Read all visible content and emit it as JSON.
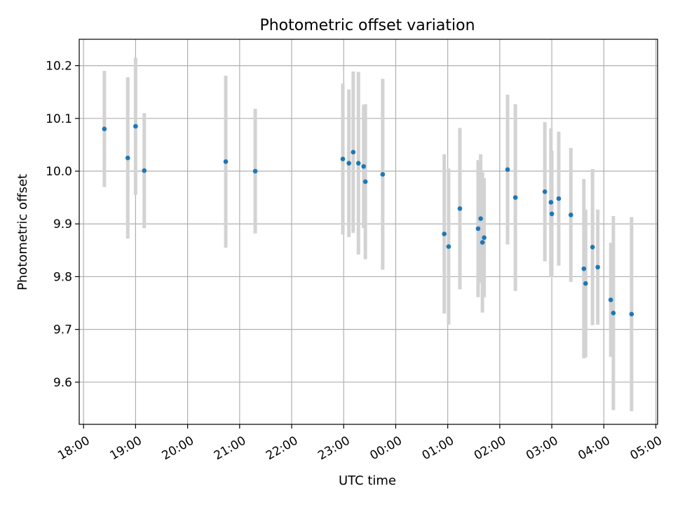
{
  "chart_data": {
    "type": "scatter",
    "title": "Photometric offset variation",
    "xlabel": "UTC time",
    "ylabel": "Photometric offset",
    "x_axis_kind": "time (hours)",
    "xlim": [
      "17:55",
      "05:02"
    ],
    "ylim": [
      9.52,
      10.25
    ],
    "x_ticks": [
      "18:00",
      "19:00",
      "20:00",
      "21:00",
      "22:00",
      "23:00",
      "00:00",
      "01:00",
      "02:00",
      "03:00",
      "04:00",
      "05:00"
    ],
    "y_ticks": [
      9.6,
      9.7,
      9.8,
      9.9,
      10.0,
      10.1,
      10.2
    ],
    "grid": true,
    "legend": "none",
    "marker_color": "#1f77b4",
    "errorbar_color": "#d3d3d3",
    "series": [
      {
        "points": [
          {
            "x": "18:24",
            "y": 10.08,
            "err": 0.11
          },
          {
            "x": "18:51",
            "y": 10.025,
            "err": 0.153
          },
          {
            "x": "19:00",
            "y": 10.085,
            "err": 0.13
          },
          {
            "x": "19:10",
            "y": 10.001,
            "err": 0.109
          },
          {
            "x": "20:44",
            "y": 10.018,
            "err": 0.163
          },
          {
            "x": "21:18",
            "y": 10.0,
            "err": 0.118
          },
          {
            "x": "22:59",
            "y": 10.023,
            "err": 0.143
          },
          {
            "x": "23:06",
            "y": 10.015,
            "err": 0.14
          },
          {
            "x": "23:11",
            "y": 10.036,
            "err": 0.153
          },
          {
            "x": "23:17",
            "y": 10.015,
            "err": 0.173
          },
          {
            "x": "23:23",
            "y": 10.009,
            "err": 0.117
          },
          {
            "x": "23:25",
            "y": 9.98,
            "err": 0.147
          },
          {
            "x": "23:45",
            "y": 9.994,
            "err": 0.181
          },
          {
            "x": "00:56",
            "y": 9.881,
            "err": 0.151
          },
          {
            "x": "01:01",
            "y": 9.857,
            "err": 0.148
          },
          {
            "x": "01:14",
            "y": 9.929,
            "err": 0.153
          },
          {
            "x": "01:35",
            "y": 9.891,
            "err": 0.13
          },
          {
            "x": "01:38",
            "y": 9.91,
            "err": 0.122
          },
          {
            "x": "01:40",
            "y": 9.865,
            "err": 0.133
          },
          {
            "x": "01:42",
            "y": 9.874,
            "err": 0.113
          },
          {
            "x": "02:09",
            "y": 10.003,
            "err": 0.142
          },
          {
            "x": "02:18",
            "y": 9.95,
            "err": 0.177
          },
          {
            "x": "02:52",
            "y": 9.961,
            "err": 0.132
          },
          {
            "x": "02:59",
            "y": 9.941,
            "err": 0.14
          },
          {
            "x": "03:00",
            "y": 9.919,
            "err": 0.12
          },
          {
            "x": "03:08",
            "y": 9.948,
            "err": 0.127
          },
          {
            "x": "03:22",
            "y": 9.917,
            "err": 0.127
          },
          {
            "x": "03:37",
            "y": 9.815,
            "err": 0.17
          },
          {
            "x": "03:39",
            "y": 9.787,
            "err": 0.14
          },
          {
            "x": "03:47",
            "y": 9.856,
            "err": 0.148
          },
          {
            "x": "03:53",
            "y": 9.818,
            "err": 0.109
          },
          {
            "x": "04:08",
            "y": 9.756,
            "err": 0.108
          },
          {
            "x": "04:11",
            "y": 9.731,
            "err": 0.184
          },
          {
            "x": "04:32",
            "y": 9.729,
            "err": 0.184
          }
        ]
      }
    ]
  }
}
